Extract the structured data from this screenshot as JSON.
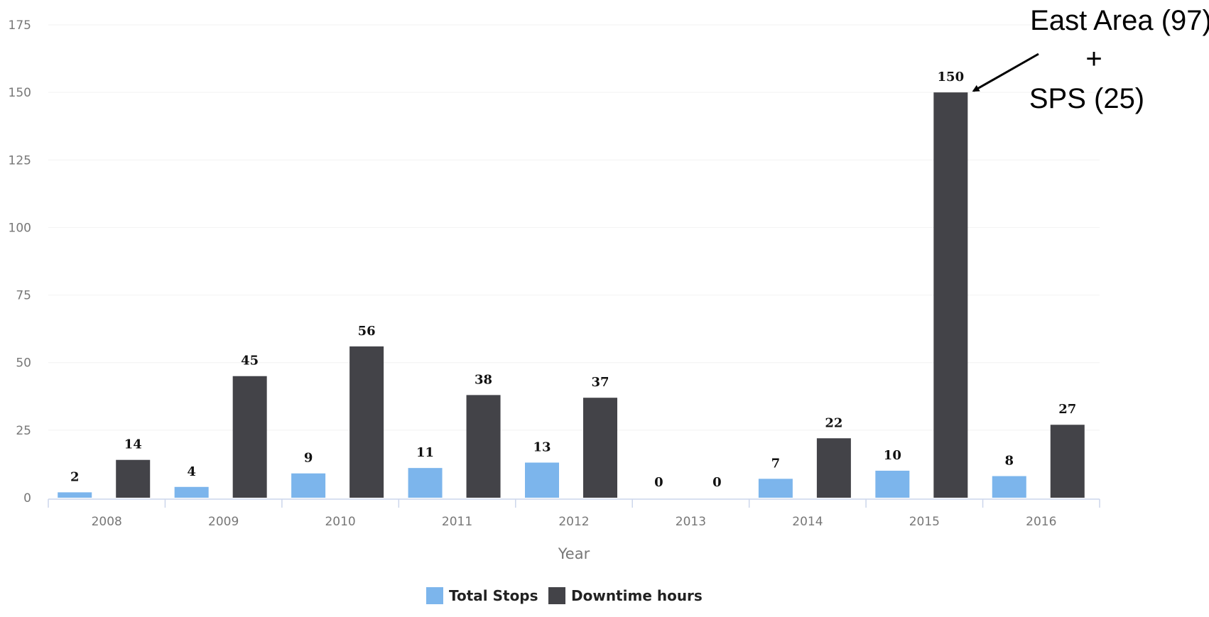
{
  "chart_data": {
    "type": "bar",
    "categories": [
      "2008",
      "2009",
      "2010",
      "2011",
      "2012",
      "2013",
      "2014",
      "2015",
      "2016"
    ],
    "series": [
      {
        "name": "Total Stops",
        "color": "#7cb5ec",
        "values": [
          2,
          4,
          9,
          11,
          13,
          0,
          7,
          10,
          8
        ]
      },
      {
        "name": "Downtime hours",
        "color": "#434348",
        "values": [
          14,
          45,
          56,
          38,
          37,
          0,
          22,
          150,
          27
        ]
      }
    ],
    "title": "",
    "xlabel": "Year",
    "ylabel": "",
    "ylim": [
      0,
      175
    ],
    "yticks": [
      0,
      25,
      50,
      75,
      100,
      125,
      150,
      175
    ],
    "grid": true,
    "legend": "bottom-center",
    "annotation": {
      "lines": [
        "East Area (97)",
        "+",
        "SPS (25)"
      ],
      "target_category": "2015",
      "target_series": "Downtime hours"
    }
  }
}
